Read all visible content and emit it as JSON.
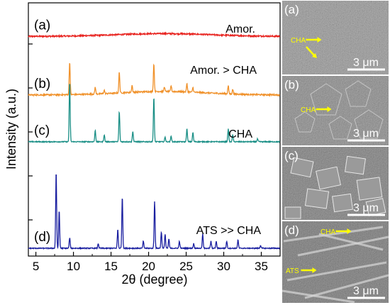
{
  "chart_data": {
    "type": "line",
    "xlabel": "2θ (degree)",
    "ylabel": "Intensity (a.u.)",
    "xlim": [
      4,
      37.5
    ],
    "x_ticks": [
      5,
      10,
      15,
      20,
      25,
      30,
      35
    ],
    "grid": false,
    "series": [
      {
        "tag": "(a)",
        "name": "Amor.",
        "color": "#e8231f",
        "offset": 0.905,
        "noise": 0.003,
        "hump": {
          "center": 22,
          "width": 9,
          "height": 0.012
        },
        "peaks": []
      },
      {
        "tag": "(b)",
        "name": "Amor. > CHA",
        "color": "#f0912a",
        "offset": 0.655,
        "noise": 0.003,
        "hump": {
          "center": 22,
          "width": 8,
          "height": 0.015
        },
        "peaks": [
          [
            9.5,
            0.14
          ],
          [
            12.9,
            0.03
          ],
          [
            14.1,
            0.015
          ],
          [
            16.1,
            0.09
          ],
          [
            17.8,
            0.03
          ],
          [
            20.7,
            0.12
          ],
          [
            22.1,
            0.02
          ],
          [
            23.0,
            0.025
          ],
          [
            25.1,
            0.035
          ],
          [
            25.9,
            0.02
          ],
          [
            30.6,
            0.035
          ],
          [
            31.2,
            0.02
          ]
        ]
      },
      {
        "tag": "(c)",
        "name": "CHA",
        "color": "#1a8f86",
        "offset": 0.455,
        "noise": 0.002,
        "hump": {
          "center": 22,
          "width": 8,
          "height": 0.0
        },
        "peaks": [
          [
            9.5,
            0.255
          ],
          [
            12.9,
            0.05
          ],
          [
            14.1,
            0.03
          ],
          [
            16.1,
            0.13
          ],
          [
            17.9,
            0.045
          ],
          [
            20.7,
            0.19
          ],
          [
            22.2,
            0.02
          ],
          [
            23.0,
            0.025
          ],
          [
            25.1,
            0.055
          ],
          [
            25.9,
            0.04
          ],
          [
            30.6,
            0.055
          ],
          [
            31.2,
            0.03
          ],
          [
            34.5,
            0.012
          ]
        ]
      },
      {
        "tag": "(d)",
        "name": "ATS >> CHA",
        "color": "#1a1fa0",
        "offset": 0.0,
        "noise": 0.002,
        "hump": {
          "center": 22,
          "width": 8,
          "height": 0.0
        },
        "peaks": [
          [
            7.7,
            0.33
          ],
          [
            8.1,
            0.16
          ],
          [
            9.5,
            0.045
          ],
          [
            13.3,
            0.02
          ],
          [
            15.9,
            0.08
          ],
          [
            16.5,
            0.22
          ],
          [
            19.3,
            0.03
          ],
          [
            20.8,
            0.2
          ],
          [
            21.7,
            0.07
          ],
          [
            22.2,
            0.06
          ],
          [
            22.7,
            0.04
          ],
          [
            24.1,
            0.03
          ],
          [
            26.0,
            0.02
          ],
          [
            27.2,
            0.06
          ],
          [
            28.3,
            0.03
          ],
          [
            29.0,
            0.03
          ],
          [
            30.4,
            0.03
          ],
          [
            31.9,
            0.035
          ],
          [
            34.9,
            0.012
          ]
        ]
      }
    ]
  },
  "sem_panels": [
    {
      "letter": "(a)",
      "scale_label": "3 μm",
      "annotations": [
        {
          "text": "CHA"
        }
      ]
    },
    {
      "letter": "(b)",
      "scale_label": "3 μm",
      "annotations": [
        {
          "text": "CHA"
        }
      ]
    },
    {
      "letter": "(c)",
      "scale_label": "3 μm",
      "annotations": []
    },
    {
      "letter": "(d)",
      "scale_label": "3 μm",
      "annotations": [
        {
          "text": "CHA"
        },
        {
          "text": "ATS"
        }
      ]
    }
  ]
}
